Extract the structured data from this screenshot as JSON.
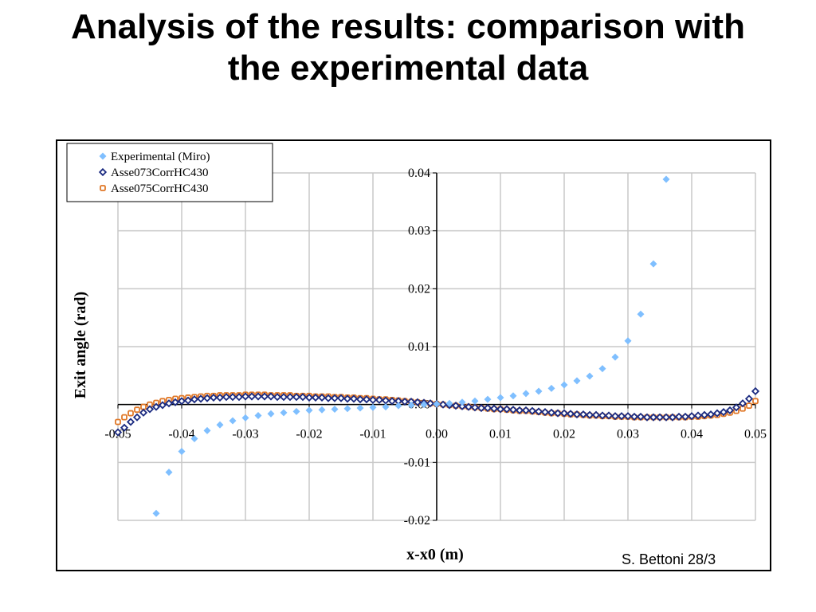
{
  "slide": {
    "title_line1": "Analysis of the results: comparison with",
    "title_line2": "the experimental data",
    "footer": "S. Bettoni 28/3"
  },
  "colors": {
    "experimental": "#7fbfff",
    "asse073": "#1a2a80",
    "asse075": "#e07828",
    "grid": "#c8c8c8"
  },
  "chart_data": {
    "type": "scatter",
    "xlabel": "x-x0 (m)",
    "ylabel": "Exit angle (rad)",
    "xlim": [
      -0.05,
      0.05
    ],
    "ylim": [
      -0.02,
      0.04
    ],
    "x_ticks": [
      "-0.05",
      "-0.04",
      "-0.03",
      "-0.02",
      "-0.01",
      "0.00",
      "0.01",
      "0.02",
      "0.03",
      "0.04",
      "0.05"
    ],
    "y_ticks": [
      "-0.02",
      "-0.01",
      "0.00",
      "0.01",
      "0.02",
      "0.03",
      "0.04"
    ],
    "grid": true,
    "legend_position": "top-left",
    "series": [
      {
        "name": "Experimental (Miro)",
        "marker": "diamond-filled",
        "x": [
          -0.044,
          -0.042,
          -0.04,
          -0.038,
          -0.036,
          -0.034,
          -0.032,
          -0.03,
          -0.028,
          -0.026,
          -0.024,
          -0.022,
          -0.02,
          -0.018,
          -0.016,
          -0.014,
          -0.012,
          -0.01,
          -0.008,
          -0.006,
          -0.004,
          -0.002,
          0.0,
          0.002,
          0.004,
          0.006,
          0.008,
          0.01,
          0.012,
          0.014,
          0.016,
          0.018,
          0.02,
          0.022,
          0.024,
          0.026,
          0.028,
          0.03,
          0.032,
          0.034,
          0.036
        ],
        "y": [
          -0.0188,
          -0.0117,
          -0.0081,
          -0.0059,
          -0.0045,
          -0.0035,
          -0.0028,
          -0.0023,
          -0.0019,
          -0.0016,
          -0.0014,
          -0.0012,
          -0.001,
          -0.0009,
          -0.0008,
          -0.0007,
          -0.0006,
          -0.0005,
          -0.0004,
          -0.0002,
          -0.0001,
          0.0,
          0.0001,
          0.0002,
          0.0004,
          0.0006,
          0.0009,
          0.0012,
          0.0015,
          0.0019,
          0.0023,
          0.0028,
          0.0034,
          0.0041,
          0.0049,
          0.0062,
          0.0082,
          0.011,
          0.0156,
          0.0243,
          0.0389
        ]
      },
      {
        "name": "Asse073CorrHC430",
        "marker": "diamond-open",
        "x": [
          -0.05,
          -0.049,
          -0.048,
          -0.047,
          -0.046,
          -0.045,
          -0.044,
          -0.043,
          -0.042,
          -0.041,
          -0.04,
          -0.039,
          -0.038,
          -0.037,
          -0.036,
          -0.035,
          -0.034,
          -0.033,
          -0.032,
          -0.031,
          -0.03,
          -0.029,
          -0.028,
          -0.027,
          -0.026,
          -0.025,
          -0.024,
          -0.023,
          -0.022,
          -0.021,
          -0.02,
          -0.019,
          -0.018,
          -0.017,
          -0.016,
          -0.015,
          -0.014,
          -0.013,
          -0.012,
          -0.011,
          -0.01,
          -0.009,
          -0.008,
          -0.007,
          -0.006,
          -0.005,
          -0.004,
          -0.003,
          -0.002,
          -0.001,
          0.0,
          0.001,
          0.002,
          0.003,
          0.004,
          0.005,
          0.006,
          0.007,
          0.008,
          0.009,
          0.01,
          0.011,
          0.012,
          0.013,
          0.014,
          0.015,
          0.016,
          0.017,
          0.018,
          0.019,
          0.02,
          0.021,
          0.022,
          0.023,
          0.024,
          0.025,
          0.026,
          0.027,
          0.028,
          0.029,
          0.03,
          0.031,
          0.032,
          0.033,
          0.034,
          0.035,
          0.036,
          0.037,
          0.038,
          0.039,
          0.04,
          0.041,
          0.042,
          0.043,
          0.044,
          0.045,
          0.046,
          0.047,
          0.048,
          0.049,
          0.05
        ],
        "y": [
          -0.0048,
          -0.004,
          -0.003,
          -0.0022,
          -0.0014,
          -0.0008,
          -0.0004,
          -0.0001,
          0.0002,
          0.0004,
          0.0006,
          0.0007,
          0.0009,
          0.001,
          0.0011,
          0.0012,
          0.0012,
          0.0013,
          0.0013,
          0.0013,
          0.0014,
          0.0014,
          0.0014,
          0.0014,
          0.0014,
          0.0013,
          0.0013,
          0.0013,
          0.0013,
          0.0013,
          0.0012,
          0.0012,
          0.0012,
          0.0011,
          0.0011,
          0.0011,
          0.001,
          0.001,
          0.0009,
          0.0009,
          0.0008,
          0.0008,
          0.0007,
          0.0006,
          0.0006,
          0.0005,
          0.0005,
          0.0004,
          0.0003,
          0.0002,
          0.0001,
          0.0,
          -0.0001,
          -0.0002,
          -0.0003,
          -0.0004,
          -0.0005,
          -0.0006,
          -0.0006,
          -0.0007,
          -0.0008,
          -0.0008,
          -0.0009,
          -0.001,
          -0.001,
          -0.0011,
          -0.0012,
          -0.0013,
          -0.0014,
          -0.0015,
          -0.0015,
          -0.0016,
          -0.0017,
          -0.0017,
          -0.0018,
          -0.0018,
          -0.0019,
          -0.0019,
          -0.002,
          -0.002,
          -0.002,
          -0.0021,
          -0.0021,
          -0.0022,
          -0.0022,
          -0.0022,
          -0.0022,
          -0.0022,
          -0.0021,
          -0.0021,
          -0.002,
          -0.0019,
          -0.0018,
          -0.0017,
          -0.0015,
          -0.0013,
          -0.001,
          -0.0005,
          0.0002,
          0.001,
          0.0023
        ]
      },
      {
        "name": "Asse075CorrHC430",
        "marker": "square-open",
        "x": [
          -0.05,
          -0.049,
          -0.048,
          -0.047,
          -0.046,
          -0.045,
          -0.044,
          -0.043,
          -0.042,
          -0.041,
          -0.04,
          -0.039,
          -0.038,
          -0.037,
          -0.036,
          -0.035,
          -0.034,
          -0.033,
          -0.032,
          -0.031,
          -0.03,
          -0.029,
          -0.028,
          -0.027,
          -0.026,
          -0.025,
          -0.024,
          -0.023,
          -0.022,
          -0.021,
          -0.02,
          -0.019,
          -0.018,
          -0.017,
          -0.016,
          -0.015,
          -0.014,
          -0.013,
          -0.012,
          -0.011,
          -0.01,
          -0.009,
          -0.008,
          -0.007,
          -0.006,
          -0.005,
          -0.004,
          -0.003,
          -0.002,
          -0.001,
          0.0,
          0.001,
          0.002,
          0.003,
          0.004,
          0.005,
          0.006,
          0.007,
          0.008,
          0.009,
          0.01,
          0.011,
          0.012,
          0.013,
          0.014,
          0.015,
          0.016,
          0.017,
          0.018,
          0.019,
          0.02,
          0.021,
          0.022,
          0.023,
          0.024,
          0.025,
          0.026,
          0.027,
          0.028,
          0.029,
          0.03,
          0.031,
          0.032,
          0.033,
          0.034,
          0.035,
          0.036,
          0.037,
          0.038,
          0.039,
          0.04,
          0.041,
          0.042,
          0.043,
          0.044,
          0.045,
          0.046,
          0.047,
          0.048,
          0.049,
          0.05
        ],
        "y": [
          -0.003,
          -0.0022,
          -0.0015,
          -0.0009,
          -0.0004,
          0.0,
          0.0003,
          0.0006,
          0.0008,
          0.001,
          0.0011,
          0.0012,
          0.0013,
          0.0014,
          0.0015,
          0.0015,
          0.0016,
          0.0016,
          0.0016,
          0.0016,
          0.0017,
          0.0017,
          0.0017,
          0.0017,
          0.0016,
          0.0016,
          0.0016,
          0.0016,
          0.0015,
          0.0015,
          0.0015,
          0.0014,
          0.0014,
          0.0014,
          0.0013,
          0.0013,
          0.0012,
          0.0012,
          0.0011,
          0.0011,
          0.001,
          0.0009,
          0.0009,
          0.0008,
          0.0007,
          0.0006,
          0.0005,
          0.0004,
          0.0003,
          0.0002,
          0.0001,
          0.0,
          -0.0001,
          -0.0002,
          -0.0003,
          -0.0004,
          -0.0005,
          -0.0006,
          -0.0007,
          -0.0008,
          -0.0008,
          -0.0009,
          -0.001,
          -0.0011,
          -0.0011,
          -0.0012,
          -0.0013,
          -0.0014,
          -0.0015,
          -0.0015,
          -0.0016,
          -0.0017,
          -0.0017,
          -0.0018,
          -0.0019,
          -0.0019,
          -0.002,
          -0.002,
          -0.0021,
          -0.0021,
          -0.0021,
          -0.0022,
          -0.0022,
          -0.0022,
          -0.0022,
          -0.0022,
          -0.0022,
          -0.0022,
          -0.0022,
          -0.0022,
          -0.0021,
          -0.0021,
          -0.002,
          -0.0019,
          -0.0018,
          -0.0016,
          -0.0014,
          -0.0011,
          -0.0007,
          -0.0002,
          0.0006
        ]
      }
    ]
  }
}
